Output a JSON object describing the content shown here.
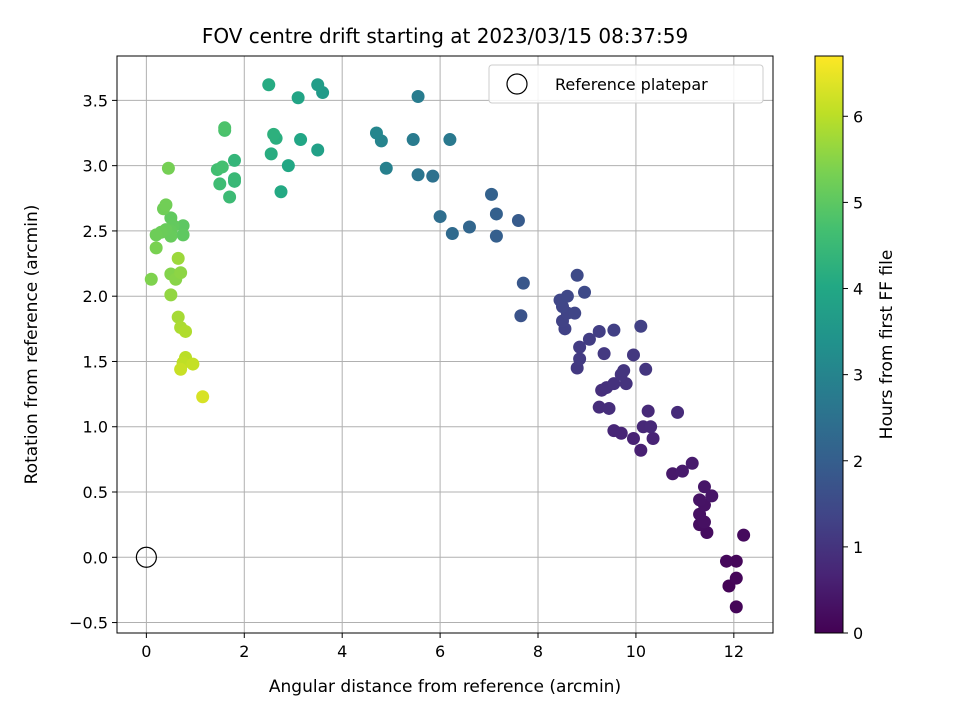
{
  "chart_data": {
    "type": "scatter",
    "title": "FOV centre drift starting at 2023/03/15 08:37:59",
    "xlabel": "Angular distance from reference (arcmin)",
    "ylabel": "Rotation from reference (arcmin)",
    "xlim": [
      -0.6,
      12.8
    ],
    "ylim": [
      -0.58,
      3.84
    ],
    "xticks": [
      0,
      2,
      4,
      6,
      8,
      10,
      12
    ],
    "yticks": [
      -0.5,
      0.0,
      0.5,
      1.0,
      1.5,
      2.0,
      2.5,
      3.0,
      3.5
    ],
    "xtick_labels": [
      "0",
      "2",
      "4",
      "6",
      "8",
      "10",
      "12"
    ],
    "ytick_labels": [
      "−0.5",
      "0.0",
      "0.5",
      "1.0",
      "1.5",
      "2.0",
      "2.5",
      "3.0",
      "3.5"
    ],
    "grid": true,
    "legend": {
      "position": "top-right",
      "label": "Reference platepar"
    },
    "reference_point": {
      "x": 0,
      "y": 0
    },
    "colorbar": {
      "label": "Hours from first FF file",
      "colormap": "viridis",
      "range": [
        0,
        6.7
      ],
      "ticks": [
        0,
        1,
        2,
        3,
        4,
        5,
        6
      ],
      "tick_labels": [
        "0",
        "1",
        "2",
        "3",
        "4",
        "5",
        "6"
      ]
    },
    "points": [
      {
        "x": 11.9,
        "y": -0.22,
        "c": 0.05
      },
      {
        "x": 12.05,
        "y": -0.38,
        "c": 0.08
      },
      {
        "x": 12.05,
        "y": -0.16,
        "c": 0.1
      },
      {
        "x": 12.05,
        "y": -0.03,
        "c": 0.12
      },
      {
        "x": 11.85,
        "y": -0.03,
        "c": 0.14
      },
      {
        "x": 12.2,
        "y": 0.17,
        "c": 0.18
      },
      {
        "x": 11.45,
        "y": 0.19,
        "c": 0.22
      },
      {
        "x": 11.3,
        "y": 0.25,
        "c": 0.25
      },
      {
        "x": 11.4,
        "y": 0.27,
        "c": 0.28
      },
      {
        "x": 11.3,
        "y": 0.33,
        "c": 0.3
      },
      {
        "x": 11.4,
        "y": 0.4,
        "c": 0.32
      },
      {
        "x": 11.3,
        "y": 0.44,
        "c": 0.35
      },
      {
        "x": 11.55,
        "y": 0.47,
        "c": 0.38
      },
      {
        "x": 11.4,
        "y": 0.54,
        "c": 0.4
      },
      {
        "x": 10.75,
        "y": 0.64,
        "c": 0.45
      },
      {
        "x": 10.95,
        "y": 0.66,
        "c": 0.48
      },
      {
        "x": 11.15,
        "y": 0.72,
        "c": 0.5
      },
      {
        "x": 10.1,
        "y": 0.82,
        "c": 0.6
      },
      {
        "x": 9.95,
        "y": 0.91,
        "c": 0.65
      },
      {
        "x": 10.35,
        "y": 0.91,
        "c": 0.68
      },
      {
        "x": 9.7,
        "y": 0.95,
        "c": 0.7
      },
      {
        "x": 9.55,
        "y": 0.97,
        "c": 0.72
      },
      {
        "x": 10.15,
        "y": 1.0,
        "c": 0.75
      },
      {
        "x": 10.3,
        "y": 1.0,
        "c": 0.78
      },
      {
        "x": 10.25,
        "y": 1.12,
        "c": 0.8
      },
      {
        "x": 10.85,
        "y": 1.11,
        "c": 0.82
      },
      {
        "x": 9.25,
        "y": 1.15,
        "c": 0.85
      },
      {
        "x": 9.45,
        "y": 1.14,
        "c": 0.88
      },
      {
        "x": 9.3,
        "y": 1.28,
        "c": 0.9
      },
      {
        "x": 9.4,
        "y": 1.3,
        "c": 0.92
      },
      {
        "x": 9.55,
        "y": 1.33,
        "c": 0.95
      },
      {
        "x": 9.8,
        "y": 1.33,
        "c": 0.98
      },
      {
        "x": 9.7,
        "y": 1.4,
        "c": 1.0
      },
      {
        "x": 9.75,
        "y": 1.43,
        "c": 1.02
      },
      {
        "x": 10.2,
        "y": 1.44,
        "c": 1.05
      },
      {
        "x": 9.95,
        "y": 1.55,
        "c": 1.08
      },
      {
        "x": 9.35,
        "y": 1.56,
        "c": 1.1
      },
      {
        "x": 8.8,
        "y": 1.45,
        "c": 1.12
      },
      {
        "x": 8.85,
        "y": 1.52,
        "c": 1.15
      },
      {
        "x": 8.85,
        "y": 1.61,
        "c": 1.18
      },
      {
        "x": 9.05,
        "y": 1.67,
        "c": 1.2
      },
      {
        "x": 9.25,
        "y": 1.73,
        "c": 1.22
      },
      {
        "x": 9.55,
        "y": 1.74,
        "c": 1.25
      },
      {
        "x": 10.1,
        "y": 1.77,
        "c": 1.28
      },
      {
        "x": 8.55,
        "y": 1.75,
        "c": 1.3
      },
      {
        "x": 8.5,
        "y": 1.81,
        "c": 1.32
      },
      {
        "x": 8.6,
        "y": 1.87,
        "c": 1.35
      },
      {
        "x": 8.75,
        "y": 1.87,
        "c": 1.38
      },
      {
        "x": 8.5,
        "y": 1.92,
        "c": 1.4
      },
      {
        "x": 8.45,
        "y": 1.97,
        "c": 1.42
      },
      {
        "x": 8.6,
        "y": 2.0,
        "c": 1.45
      },
      {
        "x": 8.95,
        "y": 2.03,
        "c": 1.48
      },
      {
        "x": 8.8,
        "y": 2.16,
        "c": 1.5
      },
      {
        "x": 7.65,
        "y": 1.85,
        "c": 1.7
      },
      {
        "x": 7.7,
        "y": 2.1,
        "c": 1.8
      },
      {
        "x": 7.6,
        "y": 2.58,
        "c": 1.9
      },
      {
        "x": 7.15,
        "y": 2.46,
        "c": 2.0
      },
      {
        "x": 7.15,
        "y": 2.63,
        "c": 2.05
      },
      {
        "x": 7.05,
        "y": 2.78,
        "c": 2.1
      },
      {
        "x": 6.6,
        "y": 2.53,
        "c": 2.2
      },
      {
        "x": 6.25,
        "y": 2.48,
        "c": 2.3
      },
      {
        "x": 6.0,
        "y": 2.61,
        "c": 2.4
      },
      {
        "x": 5.85,
        "y": 2.92,
        "c": 2.5
      },
      {
        "x": 5.55,
        "y": 2.93,
        "c": 2.6
      },
      {
        "x": 6.2,
        "y": 3.2,
        "c": 2.7
      },
      {
        "x": 5.45,
        "y": 3.2,
        "c": 2.75
      },
      {
        "x": 5.55,
        "y": 3.53,
        "c": 2.8
      },
      {
        "x": 4.9,
        "y": 2.98,
        "c": 2.9
      },
      {
        "x": 4.8,
        "y": 3.19,
        "c": 3.0
      },
      {
        "x": 4.7,
        "y": 3.25,
        "c": 3.05
      },
      {
        "x": 3.6,
        "y": 3.56,
        "c": 3.6
      },
      {
        "x": 3.5,
        "y": 3.62,
        "c": 3.7
      },
      {
        "x": 3.5,
        "y": 3.12,
        "c": 3.8
      },
      {
        "x": 3.1,
        "y": 3.52,
        "c": 3.9
      },
      {
        "x": 3.15,
        "y": 3.2,
        "c": 3.95
      },
      {
        "x": 2.9,
        "y": 3.0,
        "c": 4.0
      },
      {
        "x": 2.75,
        "y": 2.8,
        "c": 4.05
      },
      {
        "x": 2.5,
        "y": 3.62,
        "c": 4.1
      },
      {
        "x": 2.55,
        "y": 3.09,
        "c": 4.15
      },
      {
        "x": 2.65,
        "y": 3.21,
        "c": 4.2
      },
      {
        "x": 2.6,
        "y": 3.24,
        "c": 4.25
      },
      {
        "x": 1.8,
        "y": 3.04,
        "c": 4.4
      },
      {
        "x": 1.8,
        "y": 2.88,
        "c": 4.45
      },
      {
        "x": 1.8,
        "y": 2.9,
        "c": 4.5
      },
      {
        "x": 1.7,
        "y": 2.76,
        "c": 4.55
      },
      {
        "x": 1.5,
        "y": 2.86,
        "c": 4.6
      },
      {
        "x": 1.45,
        "y": 2.97,
        "c": 4.65
      },
      {
        "x": 1.55,
        "y": 2.99,
        "c": 4.7
      },
      {
        "x": 1.6,
        "y": 3.27,
        "c": 4.75
      },
      {
        "x": 1.6,
        "y": 3.29,
        "c": 4.8
      },
      {
        "x": 0.75,
        "y": 2.54,
        "c": 5.0
      },
      {
        "x": 0.75,
        "y": 2.47,
        "c": 5.02
      },
      {
        "x": 0.5,
        "y": 2.6,
        "c": 5.05
      },
      {
        "x": 0.55,
        "y": 2.54,
        "c": 5.08
      },
      {
        "x": 0.5,
        "y": 2.5,
        "c": 5.1
      },
      {
        "x": 0.5,
        "y": 2.46,
        "c": 5.12
      },
      {
        "x": 0.4,
        "y": 2.51,
        "c": 5.15
      },
      {
        "x": 0.3,
        "y": 2.49,
        "c": 5.18
      },
      {
        "x": 0.2,
        "y": 2.47,
        "c": 5.2
      },
      {
        "x": 0.35,
        "y": 2.67,
        "c": 5.22
      },
      {
        "x": 0.4,
        "y": 2.7,
        "c": 5.25
      },
      {
        "x": 0.45,
        "y": 2.98,
        "c": 5.3
      },
      {
        "x": 0.2,
        "y": 2.37,
        "c": 5.35
      },
      {
        "x": 0.1,
        "y": 2.13,
        "c": 5.4
      },
      {
        "x": 0.5,
        "y": 2.17,
        "c": 5.45
      },
      {
        "x": 0.6,
        "y": 2.13,
        "c": 5.5
      },
      {
        "x": 0.7,
        "y": 2.18,
        "c": 5.55
      },
      {
        "x": 0.5,
        "y": 2.01,
        "c": 5.6
      },
      {
        "x": 0.65,
        "y": 2.29,
        "c": 5.7
      },
      {
        "x": 0.65,
        "y": 1.84,
        "c": 5.8
      },
      {
        "x": 0.7,
        "y": 1.76,
        "c": 5.85
      },
      {
        "x": 0.8,
        "y": 1.73,
        "c": 5.9
      },
      {
        "x": 0.8,
        "y": 1.53,
        "c": 6.0
      },
      {
        "x": 0.75,
        "y": 1.49,
        "c": 6.05
      },
      {
        "x": 0.95,
        "y": 1.48,
        "c": 6.1
      },
      {
        "x": 0.7,
        "y": 1.44,
        "c": 6.15
      },
      {
        "x": 1.15,
        "y": 1.23,
        "c": 6.3
      }
    ]
  }
}
